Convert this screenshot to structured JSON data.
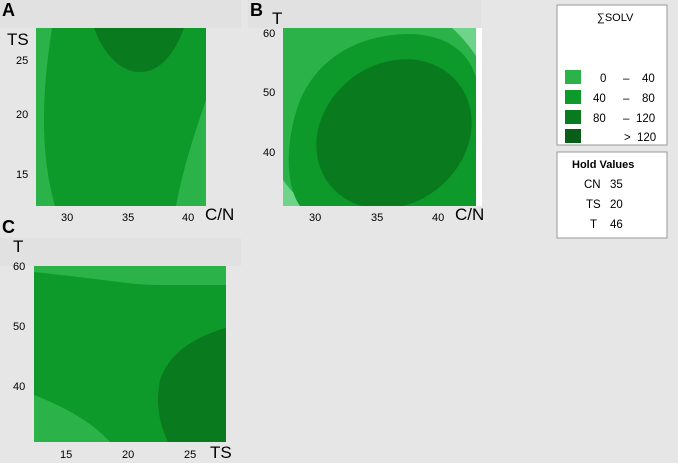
{
  "chart_data": [
    {
      "panel": "A",
      "type": "contour",
      "xlabel": "C/N",
      "ylabel": "TS",
      "x_ticks": [
        "30",
        "35",
        "40"
      ],
      "y_ticks": [
        "15",
        "20",
        "25"
      ],
      "xlim": [
        27,
        44
      ],
      "ylim": [
        12,
        27
      ],
      "regions": [
        {
          "level": "0 – 40",
          "description": "left edge band and lower-right corner"
        },
        {
          "level": "40 – 80",
          "description": "central body"
        },
        {
          "level": "80 – 120",
          "description": "top centre lobe around C/N 36, TS 25-27"
        }
      ]
    },
    {
      "panel": "B",
      "type": "contour",
      "xlabel": "C/N",
      "ylabel": "T",
      "x_ticks": [
        "30",
        "35",
        "40"
      ],
      "y_ticks": [
        "40",
        "50",
        "60"
      ],
      "xlim": [
        27,
        44
      ],
      "ylim": [
        31,
        61
      ],
      "regions": [
        {
          "level": "0 – 40",
          "description": "outer frame, corners upper-right and lower-left"
        },
        {
          "level": "40 – 80",
          "description": "band around ellipse"
        },
        {
          "level": "80 – 120",
          "description": "tilted ellipse centred near C/N 37, T 45"
        }
      ]
    },
    {
      "panel": "C",
      "type": "contour",
      "xlabel": "TS",
      "ylabel": "T",
      "x_ticks": [
        "15",
        "20",
        "25"
      ],
      "y_ticks": [
        "40",
        "50",
        "60"
      ],
      "xlim": [
        12,
        27
      ],
      "ylim": [
        31,
        61
      ],
      "regions": [
        {
          "level": "0 – 40",
          "description": "top strip and lower-left corner"
        },
        {
          "level": "40 – 80",
          "description": "central body"
        },
        {
          "level": "80 – 120",
          "description": "lower-right lobe around TS 25, T 40"
        }
      ]
    }
  ],
  "panels": {
    "a": {
      "letter": "A",
      "xlabel": "C/N",
      "ylabel": "TS",
      "x_ticks": [
        "30",
        "35",
        "40"
      ],
      "y_ticks": [
        "15",
        "20",
        "25"
      ]
    },
    "b": {
      "letter": "B",
      "xlabel": "C/N",
      "ylabel": "T",
      "x_ticks": [
        "30",
        "35",
        "40"
      ],
      "y_ticks": [
        "40",
        "50",
        "60"
      ]
    },
    "c": {
      "letter": "C",
      "xlabel": "TS",
      "ylabel": "T",
      "x_ticks": [
        "15",
        "20",
        "25"
      ],
      "y_ticks": [
        "40",
        "50",
        "60"
      ]
    }
  },
  "legend": {
    "title": "∑SOLV",
    "items": [
      {
        "low": "0",
        "dash": "–",
        "high": "40",
        "color": "#2bb34a"
      },
      {
        "low": "40",
        "dash": "–",
        "high": "80",
        "color": "#0d9a2a"
      },
      {
        "low": "80",
        "dash": "–",
        "high": "120",
        "color": "#0a7a1f"
      },
      {
        "low": "",
        "dash": ">",
        "high": "120",
        "color": "#085d18"
      }
    ]
  },
  "hold_values": {
    "title": "Hold Values",
    "rows": [
      {
        "name": "CN",
        "value": "35"
      },
      {
        "name": "TS",
        "value": "20"
      },
      {
        "name": "T",
        "value": "46"
      }
    ]
  },
  "colors": {
    "background": "#e6e6e6",
    "band_0_40": "#2bb34a",
    "band_40_80": "#0d9a2a",
    "band_80_120": "#0a7a1f",
    "band_gt_120": "#085d18",
    "pale_corner": "#6fd48a"
  }
}
